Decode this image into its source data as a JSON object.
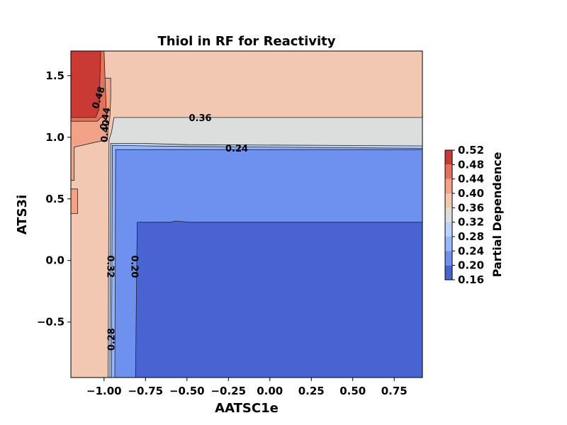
{
  "chart_data": {
    "type": "contour",
    "title": "Thiol in RF for Reactivity",
    "xlabel": "AATSC1e",
    "ylabel": "ATS3i",
    "xlim": [
      -1.2,
      0.92
    ],
    "ylim": [
      -0.95,
      1.7
    ],
    "x_ticks": [
      {
        "value": -1.0,
        "label": "−1.00"
      },
      {
        "value": -0.75,
        "label": "−0.75"
      },
      {
        "value": -0.5,
        "label": "−0.50"
      },
      {
        "value": -0.25,
        "label": "−0.25"
      },
      {
        "value": 0.0,
        "label": "0.00"
      },
      {
        "value": 0.25,
        "label": "0.25"
      },
      {
        "value": 0.5,
        "label": "0.50"
      },
      {
        "value": 0.75,
        "label": "0.75"
      }
    ],
    "y_ticks": [
      {
        "value": -0.5,
        "label": "−0.5"
      },
      {
        "value": 0.0,
        "label": "0.0"
      },
      {
        "value": 0.5,
        "label": "0.5"
      },
      {
        "value": 1.0,
        "label": "1.0"
      },
      {
        "value": 1.5,
        "label": "1.5"
      }
    ],
    "colorbar": {
      "label": "Partial Dependence",
      "levels": [
        0.16,
        0.2,
        0.24,
        0.28,
        0.32,
        0.36,
        0.4,
        0.44,
        0.48,
        0.52
      ],
      "tick_labels": [
        "0.16",
        "0.20",
        "0.24",
        "0.28",
        "0.32",
        "0.36",
        "0.40",
        "0.44",
        "0.48",
        "0.52"
      ],
      "colors": [
        "#4a63d3",
        "#6e90ee",
        "#97b7ff",
        "#bcd2f7",
        "#dcdddd",
        "#f2c8b3",
        "#f2a387",
        "#e57158",
        "#c93a35"
      ]
    },
    "regions": [
      {
        "level_index": 5,
        "polygon": [
          [
            -1.2,
            1.7
          ],
          [
            0.92,
            1.7
          ],
          [
            0.92,
            -0.95
          ],
          [
            -1.2,
            -0.95
          ]
        ]
      },
      {
        "level_index": 4,
        "polygon": [
          [
            -0.94,
            1.16
          ],
          [
            0.92,
            1.16
          ],
          [
            0.92,
            -0.95
          ],
          [
            -0.975,
            -0.95
          ],
          [
            -0.97,
            0.98
          ],
          [
            -0.955,
            1.04
          ]
        ]
      },
      {
        "level_index": 3,
        "polygon": [
          [
            -0.96,
            0.95
          ],
          [
            -0.75,
            0.95
          ],
          [
            -0.5,
            0.94
          ],
          [
            0.92,
            0.93
          ],
          [
            0.92,
            -0.95
          ],
          [
            -0.965,
            -0.95
          ]
        ]
      },
      {
        "level_index": 2,
        "polygon": [
          [
            -0.95,
            0.935
          ],
          [
            -0.75,
            0.93
          ],
          [
            -0.5,
            0.925
          ],
          [
            0.92,
            0.91
          ],
          [
            0.92,
            -0.95
          ],
          [
            -0.955,
            -0.95
          ]
        ]
      },
      {
        "level_index": 1,
        "polygon": [
          [
            -0.93,
            0.9
          ],
          [
            0.92,
            0.9
          ],
          [
            0.92,
            -0.95
          ],
          [
            -0.935,
            -0.95
          ]
        ]
      },
      {
        "level_index": 0,
        "polygon": [
          [
            -0.8,
            0.31
          ],
          [
            -0.6,
            0.31
          ],
          [
            -0.57,
            0.32
          ],
          [
            -0.48,
            0.31
          ],
          [
            0.92,
            0.31
          ],
          [
            0.92,
            -0.95
          ],
          [
            -0.81,
            -0.95
          ]
        ]
      },
      {
        "level_index": 6,
        "polygon": [
          [
            -1.2,
            1.48
          ],
          [
            -0.96,
            1.48
          ],
          [
            -0.96,
            1.32
          ],
          [
            -0.965,
            1.16
          ],
          [
            -0.975,
            1.08
          ],
          [
            -0.98,
            0.98
          ],
          [
            -1.05,
            0.96
          ],
          [
            -1.18,
            0.92
          ],
          [
            -1.18,
            0.65
          ],
          [
            -1.2,
            0.65
          ]
        ]
      },
      {
        "level_index": 6,
        "polygon": [
          [
            -1.2,
            0.58
          ],
          [
            -1.16,
            0.58
          ],
          [
            -1.16,
            0.38
          ],
          [
            -1.2,
            0.38
          ]
        ]
      },
      {
        "level_index": 7,
        "polygon": [
          [
            -1.2,
            1.7
          ],
          [
            -1.0,
            1.7
          ],
          [
            -0.985,
            1.16
          ],
          [
            -1.02,
            1.16
          ],
          [
            -1.04,
            1.13
          ],
          [
            -1.2,
            1.13
          ]
        ]
      },
      {
        "level_index": 8,
        "polygon": [
          [
            -1.2,
            1.7
          ],
          [
            -1.02,
            1.7
          ],
          [
            -1.03,
            1.23
          ],
          [
            -1.05,
            1.16
          ],
          [
            -1.2,
            1.16
          ]
        ]
      }
    ],
    "contour_labels": [
      {
        "text": "0.48",
        "x": -1.03,
        "y": 1.32,
        "angle": -72
      },
      {
        "text": "0.44",
        "x": -0.99,
        "y": 1.15,
        "angle": -80
      },
      {
        "text": "0.40",
        "x": -0.99,
        "y": 1.05,
        "angle": -85
      },
      {
        "text": "0.36",
        "x": -0.42,
        "y": 1.15,
        "angle": 0
      },
      {
        "text": "0.24",
        "x": -0.2,
        "y": 0.905,
        "angle": 0
      },
      {
        "text": "0.32",
        "x": -0.965,
        "y": -0.05,
        "angle": 90
      },
      {
        "text": "0.20",
        "x": -0.82,
        "y": -0.05,
        "angle": 90
      },
      {
        "text": "0.28",
        "x": -0.952,
        "y": -0.64,
        "angle": -90
      }
    ]
  }
}
